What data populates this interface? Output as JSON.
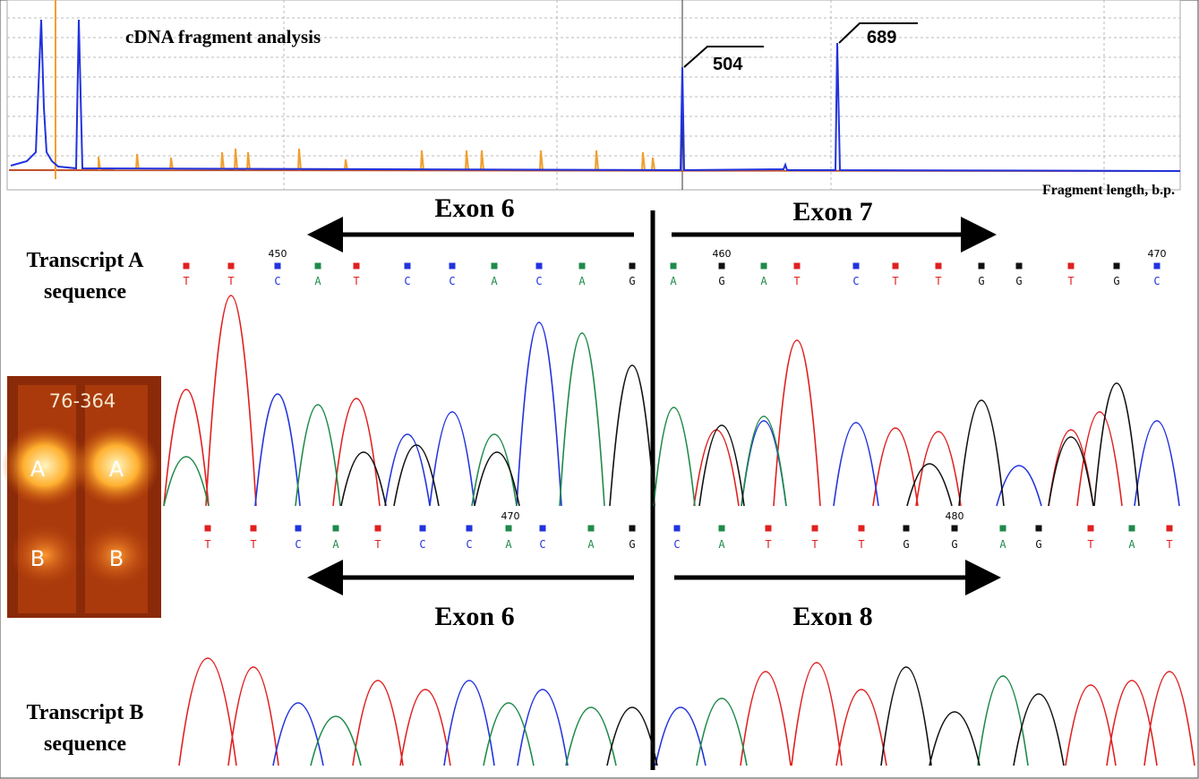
{
  "fragment_analysis": {
    "title": "cDNA fragment analysis",
    "peak_labels": [
      "504",
      "689"
    ],
    "axis_label": "Fragment length, b.p."
  },
  "transcript_a": {
    "label": [
      "Transcript A",
      "sequence"
    ],
    "exon_left": "Exon 6",
    "exon_right": "Exon 7",
    "position_labels": [
      "450",
      "460",
      "470"
    ],
    "bases": [
      "T",
      "T",
      "C",
      "A",
      "T",
      "C",
      "C",
      "A",
      "C",
      "A",
      "G",
      "A",
      "G",
      "A",
      "T",
      "C",
      "T",
      "T",
      "G",
      "G",
      "T",
      "G",
      "C"
    ]
  },
  "transcript_b": {
    "label": [
      "Transcript B",
      "sequence"
    ],
    "exon_left": "Exon 6",
    "exon_right": "Exon 8",
    "position_labels": [
      "470",
      "480"
    ],
    "bases": [
      "T",
      "T",
      "C",
      "A",
      "T",
      "C",
      "C",
      "A",
      "C",
      "A",
      "G",
      "C",
      "A",
      "T",
      "T",
      "T",
      "G",
      "G",
      "A",
      "G",
      "T",
      "A",
      "T"
    ]
  },
  "gel": {
    "label": "76-364",
    "lanes": [
      [
        "A",
        "B"
      ],
      [
        "A",
        "B"
      ]
    ]
  }
}
